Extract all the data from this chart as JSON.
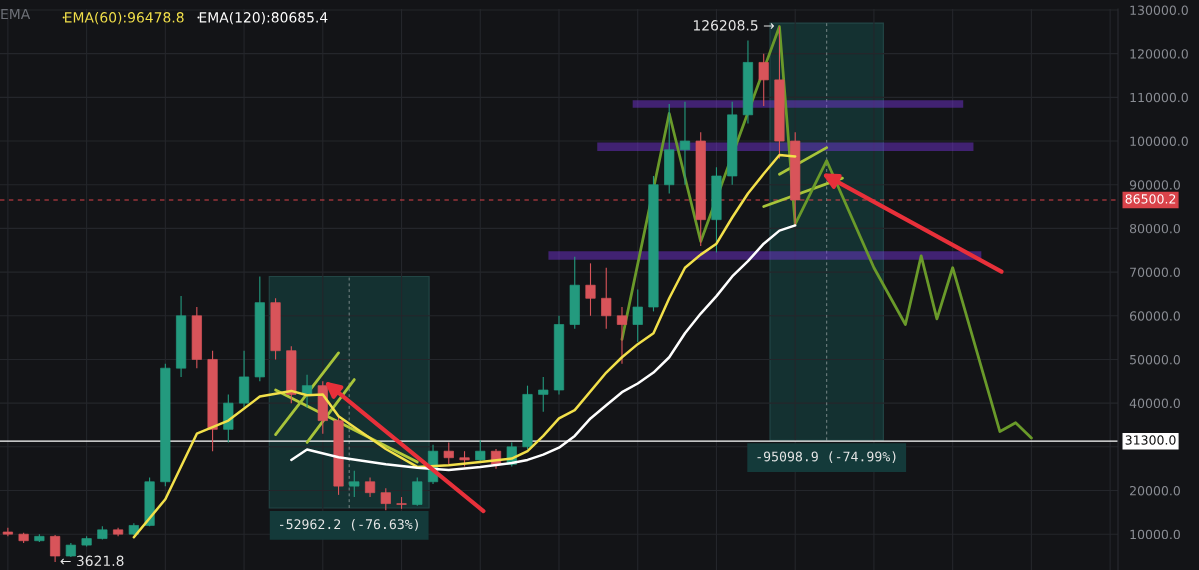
{
  "chart_data": {
    "type": "candlestick",
    "categories": [
      null,
      null,
      null,
      null,
      null,
      null,
      null,
      null,
      null,
      null,
      null,
      null,
      null,
      null,
      null,
      null,
      null,
      null,
      null,
      null,
      null,
      null,
      null,
      null,
      null,
      null,
      null,
      null,
      null,
      null,
      null,
      null,
      null,
      null,
      null,
      null,
      null,
      null,
      null,
      null,
      null,
      null,
      null,
      null,
      null,
      null,
      null,
      null,
      null,
      null,
      null,
      null,
      null,
      null,
      null,
      null,
      null,
      null,
      null,
      null,
      null,
      null,
      null,
      null,
      null,
      null,
      null,
      null,
      null,
      null,
      null
    ],
    "ohlc": [
      [
        10500,
        11500,
        9500,
        10000
      ],
      [
        10000,
        10300,
        8000,
        8500
      ],
      [
        8500,
        10000,
        8200,
        9500
      ],
      [
        9500,
        9800,
        3621.8,
        5000
      ],
      [
        5000,
        8000,
        4800,
        7500
      ],
      [
        7500,
        9500,
        7200,
        9000
      ],
      [
        9000,
        11800,
        8800,
        11000
      ],
      [
        11000,
        11500,
        9500,
        10000
      ],
      [
        10000,
        12500,
        9800,
        12000
      ],
      [
        12000,
        23000,
        11800,
        22000
      ],
      [
        22000,
        49000,
        21000,
        48000
      ],
      [
        48000,
        64500,
        46000,
        60000
      ],
      [
        60000,
        62000,
        48000,
        50000
      ],
      [
        50000,
        52000,
        29000,
        34000
      ],
      [
        34000,
        42000,
        31000,
        40000
      ],
      [
        40000,
        52000,
        39000,
        46000
      ],
      [
        46000,
        69000,
        45000,
        63000
      ],
      [
        63000,
        64000,
        50000,
        52000
      ],
      [
        52000,
        53000,
        40000,
        42000
      ],
      [
        42000,
        46500,
        39000,
        44000
      ],
      [
        44000,
        45000,
        33000,
        36000
      ],
      [
        36000,
        37000,
        19000,
        21000
      ],
      [
        21000,
        24500,
        18500,
        22000
      ],
      [
        22000,
        23000,
        18500,
        19500
      ],
      [
        19500,
        20500,
        15500,
        17000
      ],
      [
        17000,
        18500,
        15800,
        16800
      ],
      [
        16800,
        23000,
        16500,
        22000
      ],
      [
        22000,
        30500,
        21500,
        29000
      ],
      [
        29000,
        31000,
        26000,
        27500
      ],
      [
        27500,
        29000,
        25500,
        27000
      ],
      [
        27000,
        31500,
        26500,
        29000
      ],
      [
        29000,
        29500,
        25000,
        26000
      ],
      [
        26000,
        31000,
        25500,
        30000
      ],
      [
        30000,
        44000,
        29500,
        42000
      ],
      [
        42000,
        46000,
        38000,
        43000
      ],
      [
        43000,
        60000,
        42000,
        58000
      ],
      [
        58000,
        73500,
        57000,
        67000
      ],
      [
        67000,
        72000,
        60000,
        64000
      ],
      [
        64000,
        71000,
        57000,
        60000
      ],
      [
        60000,
        62000,
        49000,
        58000
      ],
      [
        58000,
        66000,
        54000,
        62000
      ],
      [
        62000,
        92000,
        61000,
        90000
      ],
      [
        90000,
        108500,
        88000,
        98000
      ],
      [
        98000,
        109000,
        90000,
        100000
      ],
      [
        100000,
        102000,
        76000,
        82000
      ],
      [
        82000,
        94000,
        74500,
        92000
      ],
      [
        92000,
        109000,
        90000,
        106000
      ],
      [
        106000,
        123000,
        104000,
        118000
      ],
      [
        118000,
        120000,
        108000,
        114000
      ],
      [
        114000,
        126208.5,
        96000,
        100000
      ],
      [
        100000,
        102000,
        80500,
        86500.2
      ],
      null,
      null,
      null,
      null,
      null,
      null,
      null,
      null,
      null,
      null,
      null,
      null,
      null,
      null,
      null,
      null,
      null,
      null,
      null,
      null
    ],
    "series": [
      {
        "name": "EMA(60):96478.8",
        "type": "line",
        "color": "#f2e04a",
        "values": [
          null,
          null,
          null,
          null,
          null,
          null,
          null,
          null,
          9300,
          null,
          18000,
          null,
          33000,
          null,
          36000,
          null,
          41500,
          null,
          42800,
          41800,
          42000,
          37000,
          null,
          null,
          29500,
          null,
          25400,
          null,
          25800,
          null,
          26500,
          null,
          27300,
          29000,
          32500,
          36500,
          38400,
          null,
          47000,
          50500,
          53500,
          56000,
          64000,
          71000,
          74000,
          76500,
          82500,
          88000,
          92500,
          96800,
          96478.8,
          null,
          null,
          null,
          null,
          null,
          null,
          null,
          null,
          null,
          null,
          null,
          null,
          null,
          null,
          null,
          null,
          null,
          null,
          null,
          null
        ]
      },
      {
        "name": "EMA(120):80685.4",
        "type": "line",
        "color": "#ffffff",
        "values": [
          null,
          null,
          null,
          null,
          null,
          null,
          null,
          null,
          null,
          null,
          null,
          null,
          null,
          null,
          null,
          null,
          null,
          null,
          27000,
          29400,
          null,
          27600,
          null,
          null,
          26000,
          null,
          25200,
          null,
          24700,
          null,
          25400,
          null,
          26300,
          27000,
          28200,
          29800,
          32500,
          36500,
          39500,
          42500,
          44500,
          47000,
          50500,
          56000,
          60500,
          64500,
          69000,
          72500,
          76500,
          79500,
          80685.4,
          null,
          null,
          null,
          null,
          null,
          null,
          null,
          null,
          null,
          null,
          null,
          null,
          null,
          null,
          null,
          null,
          null,
          null,
          null,
          null
        ]
      },
      {
        "type": "line",
        "color": "#b5c93a",
        "values": [
          null,
          null,
          null,
          null,
          null,
          null,
          null,
          null,
          null,
          null,
          null,
          null,
          null,
          null,
          null,
          null,
          null,
          43000,
          null,
          null,
          null,
          null,
          null,
          null,
          null,
          null,
          26500,
          null,
          null,
          null,
          null,
          null,
          null,
          null,
          null,
          null,
          null,
          null,
          null,
          null,
          null,
          null,
          null,
          null,
          null,
          null,
          null,
          null,
          null,
          null,
          null,
          null,
          null,
          null,
          null,
          null,
          null,
          null,
          null,
          null,
          null,
          null,
          null,
          null,
          null,
          null,
          null,
          null,
          null,
          null,
          null
        ]
      },
      {
        "type": "line",
        "color": "#a8c43a",
        "values": [
          null,
          null,
          null,
          null,
          null,
          null,
          null,
          null,
          null,
          null,
          null,
          null,
          null,
          null,
          null,
          null,
          null,
          32800,
          null,
          null,
          null,
          51500,
          null,
          null,
          null,
          null,
          null,
          null,
          null,
          null,
          null,
          null,
          null,
          null,
          null,
          null,
          null,
          null,
          null,
          null,
          null,
          null,
          null,
          null,
          null,
          null,
          null,
          null,
          null,
          null,
          null,
          null,
          null,
          null,
          null,
          null,
          null,
          null,
          null,
          null,
          null,
          null,
          null,
          null,
          null,
          null,
          null,
          null,
          null,
          null,
          null
        ]
      },
      {
        "type": "line",
        "color": "#a8c43a",
        "values": [
          null,
          null,
          null,
          null,
          null,
          null,
          null,
          null,
          null,
          null,
          null,
          null,
          null,
          null,
          null,
          null,
          null,
          null,
          null,
          31000,
          null,
          null,
          45400,
          null,
          null,
          null,
          null,
          null,
          null,
          null,
          null,
          null,
          null,
          null,
          null,
          null,
          null,
          null,
          null,
          null,
          null,
          null,
          null,
          null,
          null,
          null,
          null,
          null,
          null,
          null,
          null,
          null,
          null,
          null,
          null,
          null,
          null,
          null,
          null,
          null,
          null,
          null,
          null,
          null,
          null,
          null,
          null,
          null,
          null,
          null,
          null
        ]
      },
      {
        "type": "line",
        "color": "#a8c43a",
        "values": [
          null,
          null,
          null,
          null,
          null,
          null,
          null,
          null,
          null,
          null,
          null,
          null,
          null,
          null,
          null,
          null,
          null,
          null,
          null,
          null,
          null,
          null,
          null,
          null,
          null,
          null,
          null,
          null,
          null,
          null,
          null,
          null,
          null,
          null,
          null,
          null,
          null,
          null,
          null,
          null,
          null,
          null,
          null,
          null,
          null,
          null,
          null,
          null,
          null,
          92400,
          null,
          null,
          98500,
          null,
          null,
          null,
          null,
          null,
          null,
          null,
          null,
          null,
          null,
          null,
          null,
          null,
          null,
          null,
          null,
          null,
          null
        ]
      },
      {
        "type": "line",
        "color": "#a8c43a",
        "values": [
          null,
          null,
          null,
          null,
          null,
          null,
          null,
          null,
          null,
          null,
          null,
          null,
          null,
          null,
          null,
          null,
          null,
          null,
          null,
          null,
          null,
          null,
          null,
          null,
          null,
          null,
          null,
          null,
          null,
          null,
          null,
          null,
          null,
          null,
          null,
          null,
          null,
          null,
          null,
          null,
          null,
          null,
          null,
          null,
          null,
          null,
          null,
          null,
          85000,
          null,
          null,
          null,
          null,
          91500,
          null,
          null,
          null,
          null,
          null,
          null,
          null,
          null,
          null,
          null,
          null,
          null,
          null,
          null,
          null,
          null,
          null
        ]
      },
      {
        "type": "line",
        "color": "#6a9a2a",
        "values": [
          null,
          null,
          null,
          null,
          null,
          null,
          null,
          null,
          null,
          null,
          null,
          null,
          null,
          null,
          null,
          null,
          null,
          null,
          null,
          null,
          null,
          null,
          null,
          null,
          null,
          null,
          null,
          null,
          null,
          null,
          null,
          null,
          null,
          null,
          null,
          null,
          null,
          null,
          null,
          54600,
          null,
          null,
          106300,
          null,
          77000,
          null,
          null,
          null,
          null,
          126208.5,
          81000,
          null,
          95500,
          null,
          null,
          71000,
          null,
          58000,
          73700,
          59300,
          71000,
          null,
          null,
          33500,
          35500,
          32000,
          null,
          null,
          null,
          null,
          null
        ]
      }
    ],
    "ylim": [
      1800,
      130200
    ],
    "yticks": [
      {
        "value": 10000,
        "label": "10000.0"
      },
      {
        "value": 20000,
        "label": "20000.0"
      },
      {
        "value": 30000,
        "label": null
      },
      {
        "value": 40000,
        "label": "40000.0"
      },
      {
        "value": 50000,
        "label": "50000.0"
      },
      {
        "value": 60000,
        "label": "60000.0"
      },
      {
        "value": 70000,
        "label": "70000.0"
      },
      {
        "value": 80000,
        "label": "80000.0"
      },
      {
        "value": 90000,
        "label": "90000.0"
      },
      {
        "value": 100000,
        "label": "100000.0"
      },
      {
        "value": 110000,
        "label": "110000.0"
      },
      {
        "value": 120000,
        "label": "120000.0"
      },
      {
        "value": 130000,
        "label": "130000.0"
      }
    ],
    "ref_lines": [
      {
        "axis": "y",
        "value": 86500.2,
        "label": "86500.2",
        "color": "#d9434a",
        "line_style": "dashed"
      },
      {
        "axis": "y",
        "value": 31300,
        "label": "31300.0",
        "color": "#ffffff",
        "line_style": "solid"
      }
    ],
    "bands": [
      {
        "axis": "y",
        "from": 107900,
        "to": 109100,
        "color": "#7a35e0"
      },
      {
        "axis": "y",
        "from": 98000,
        "to": 99400,
        "color": "#7a35e0"
      },
      {
        "axis": "y",
        "from": 73100,
        "to": 74500,
        "color": "#7a35e0"
      }
    ],
    "annotations": [
      "EMA",
      "126208.5 →",
      "← 3621.8",
      "-52962.2 (-76.63%)",
      "-95098.9 (-74.99%)"
    ],
    "grid": true,
    "legend": "top left",
    "tick_labels": "y"
  }
}
